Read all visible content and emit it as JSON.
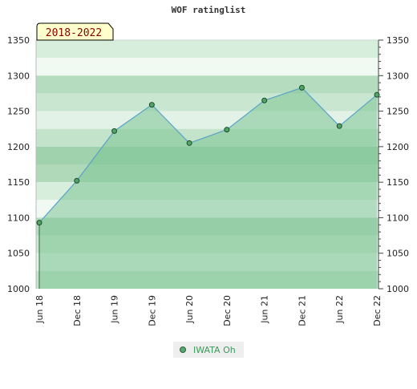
{
  "chart_data": {
    "type": "area",
    "title": "WOF ratinglist",
    "badge": "2018-2022",
    "categories": [
      "Jun 18",
      "Dec 18",
      "Jun 19",
      "Dec 19",
      "Jun 20",
      "Dec 20",
      "Jun 21",
      "Dec 21",
      "Jun 22",
      "Dec 22"
    ],
    "series": [
      {
        "name": "IWATA Oh",
        "values": [
          1093,
          1152,
          1222,
          1259,
          1205,
          1224,
          1265,
          1283,
          1229,
          1273
        ]
      }
    ],
    "ylim": [
      1000,
      1350
    ],
    "yticks": [
      1000,
      1050,
      1100,
      1150,
      1200,
      1250,
      1300,
      1350
    ],
    "grid": true,
    "legend_placement": "bottom-center",
    "colors": {
      "fill": "#7cc593",
      "line": "#5aa2c8",
      "marker": "#4fa466",
      "marker_edge": "#1f4a2a",
      "badge_bg": "#ffffcc",
      "badge_text": "#8b0000",
      "legend_text": "#3a9a5a"
    }
  }
}
